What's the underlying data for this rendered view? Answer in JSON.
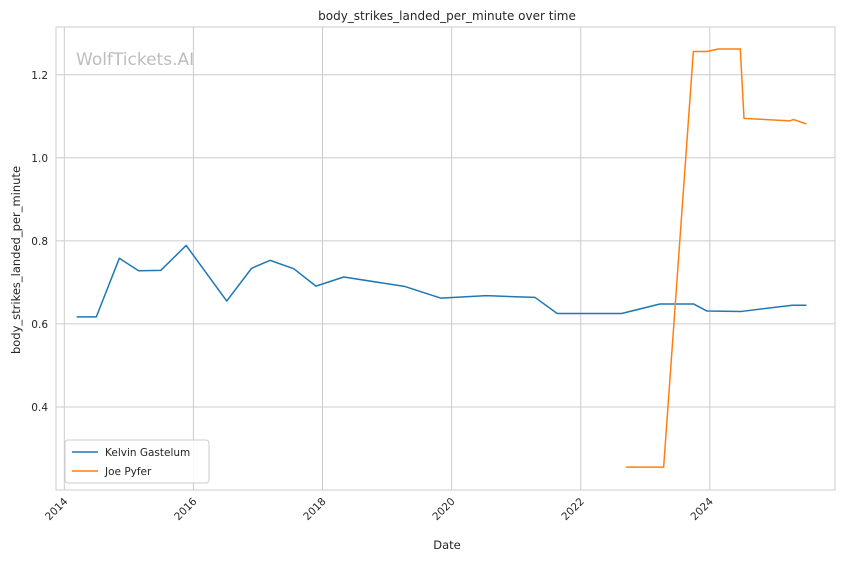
{
  "chart_data": {
    "type": "line",
    "title": "body_strikes_landed_per_minute over time",
    "xlabel": "Date",
    "ylabel": "body_strikes_landed_per_minute",
    "watermark": "WolfTickets.AI",
    "xlim": [
      "2013-11-15",
      "2025-12-10"
    ],
    "ylim": [
      0.2,
      1.315
    ],
    "x_ticks": [
      "2014",
      "2016",
      "2018",
      "2020",
      "2022",
      "2024"
    ],
    "y_ticks": [
      "0.4",
      "0.6",
      "0.8",
      "1.0",
      "1.2"
    ],
    "grid": true,
    "legend_position": "lower-left",
    "series": [
      {
        "name": "Kelvin Gastelum",
        "color": "#1f77b4",
        "points": [
          [
            "2014-03-15",
            0.617
          ],
          [
            "2014-07-01",
            0.617
          ],
          [
            "2014-11-08",
            0.758
          ],
          [
            "2015-02-25",
            0.728
          ],
          [
            "2015-07-01",
            0.729
          ],
          [
            "2015-11-21",
            0.789
          ],
          [
            "2016-07-08",
            0.655
          ],
          [
            "2016-11-26",
            0.734
          ],
          [
            "2017-03-11",
            0.753
          ],
          [
            "2017-07-22",
            0.733
          ],
          [
            "2017-11-25",
            0.691
          ],
          [
            "2018-05-01",
            0.713
          ],
          [
            "2019-04-13",
            0.69
          ],
          [
            "2019-11-02",
            0.662
          ],
          [
            "2020-07-17",
            0.668
          ],
          [
            "2021-01-15",
            0.665
          ],
          [
            "2021-04-17",
            0.664
          ],
          [
            "2021-08-21",
            0.625
          ],
          [
            "2022-01-15",
            0.625
          ],
          [
            "2022-08-20",
            0.625
          ],
          [
            "2023-03-25",
            0.648
          ],
          [
            "2023-10-01",
            0.648
          ],
          [
            "2023-12-16",
            0.631
          ],
          [
            "2024-06-29",
            0.63
          ],
          [
            "2025-04-12",
            0.645
          ],
          [
            "2025-06-28",
            0.645
          ]
        ]
      },
      {
        "name": "Joe Pyfer",
        "color": "#ff7f0e",
        "points": [
          [
            "2022-09-17",
            0.255
          ],
          [
            "2023-04-15",
            0.255
          ],
          [
            "2023-09-30",
            1.256
          ],
          [
            "2023-12-16",
            1.256
          ],
          [
            "2024-02-17",
            1.262
          ],
          [
            "2024-06-22",
            1.262
          ],
          [
            "2024-07-13",
            1.095
          ],
          [
            "2025-03-29",
            1.089
          ],
          [
            "2025-04-19",
            1.092
          ],
          [
            "2025-06-28",
            1.082
          ]
        ]
      }
    ]
  }
}
